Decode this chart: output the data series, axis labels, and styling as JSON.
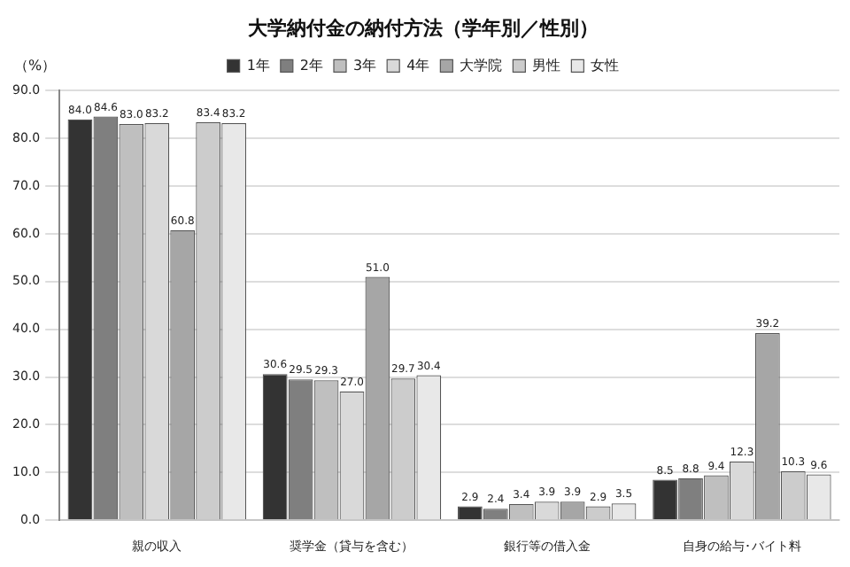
{
  "chart_data": {
    "type": "bar",
    "title": "大学納付金の納付方法（学年別／性別）",
    "ylabel": "（%）",
    "categories": [
      "親の収入",
      "奨学金（貸与を含む）",
      "銀行等の借入金",
      "自身の給与･バイト料"
    ],
    "series": [
      {
        "name": "1年",
        "color": "#333333",
        "values": [
          84.0,
          30.6,
          2.9,
          8.5
        ],
        "value_labels": [
          "84.0",
          "30.6",
          "2.9",
          "8.5"
        ]
      },
      {
        "name": "2年",
        "color": "#7f7f7f",
        "values": [
          84.6,
          29.5,
          2.4,
          8.8
        ],
        "value_labels": [
          "84.6",
          "29.5",
          "2.4",
          "8.8"
        ]
      },
      {
        "name": "3年",
        "color": "#bfbfbf",
        "values": [
          83.0,
          29.3,
          3.4,
          9.4
        ],
        "value_labels": [
          "83.0",
          "29.3",
          "3.4",
          "9.4"
        ]
      },
      {
        "name": "4年",
        "color": "#d9d9d9",
        "values": [
          83.2,
          27.0,
          3.9,
          12.3
        ],
        "value_labels": [
          "83.2",
          "27.0",
          "3.9",
          "12.3"
        ]
      },
      {
        "name": "大学院",
        "color": "#a6a6a6",
        "values": [
          60.8,
          51.0,
          3.9,
          39.2
        ],
        "value_labels": [
          "60.8",
          "51.0",
          "3.9",
          "39.2"
        ]
      },
      {
        "name": "男性",
        "color": "#cccccc",
        "values": [
          83.4,
          29.7,
          2.9,
          10.3
        ],
        "value_labels": [
          "83.4",
          "29.7",
          "2.9",
          "10.3"
        ]
      },
      {
        "name": "女性",
        "color": "#e8e8e8",
        "values": [
          83.2,
          30.4,
          3.5,
          9.6
        ],
        "value_labels": [
          "83.2",
          "30.4",
          "3.5",
          "9.6"
        ]
      }
    ],
    "ylim": [
      0,
      90
    ],
    "yticks": [
      {
        "value": 0,
        "label": "0.0"
      },
      {
        "value": 10,
        "label": "10.0"
      },
      {
        "value": 20,
        "label": "20.0"
      },
      {
        "value": 30,
        "label": "30.0"
      },
      {
        "value": 40,
        "label": "40.0"
      },
      {
        "value": 50,
        "label": "50.0"
      },
      {
        "value": 60,
        "label": "60.0"
      },
      {
        "value": 70,
        "label": "70.0"
      },
      {
        "value": 80,
        "label": "80.0"
      },
      {
        "value": 90,
        "label": "90.0"
      }
    ],
    "grid": "y",
    "legend": "top"
  }
}
